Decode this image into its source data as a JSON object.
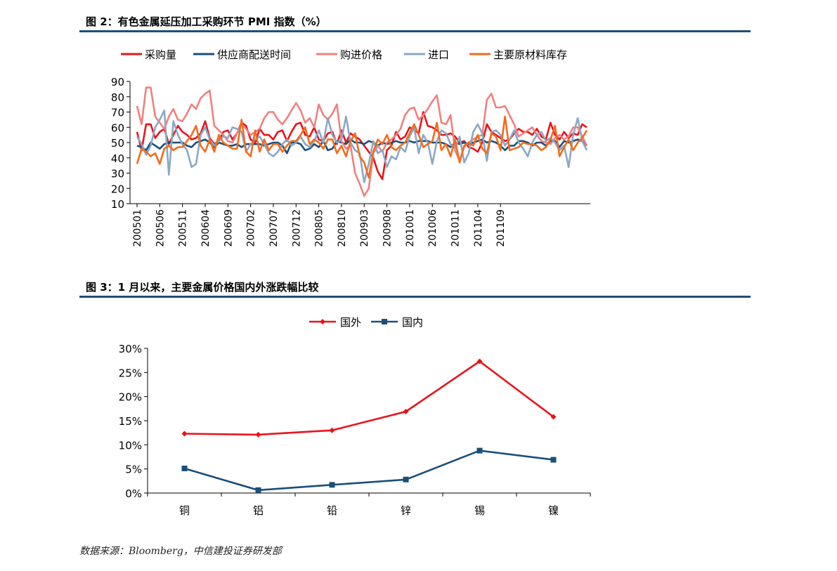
{
  "figure2": {
    "title": "图 2：有色金属延压加工采购环节 PMI 指数（%）"
  },
  "figure3": {
    "title": "图 3：1 月以来，主要金属价格国内外涨跌幅比较"
  },
  "source": "数据来源：Bloomberg，中信建投证券研发部",
  "chart_data": [
    {
      "type": "line",
      "title": "",
      "xlabel": "",
      "ylabel": "",
      "ylim": [
        10,
        90
      ],
      "yticks": [
        10,
        20,
        30,
        40,
        50,
        60,
        70,
        80,
        90
      ],
      "xtick_labels": [
        "200501",
        "200506",
        "200511",
        "200604",
        "200609",
        "200702",
        "200707",
        "200712",
        "200805",
        "200810",
        "200903",
        "200908",
        "201001",
        "201006",
        "201011",
        "201104",
        "201109"
      ],
      "grid": false,
      "legend_position": "top",
      "series": [
        {
          "name": "采购量",
          "color": "#e8141b",
          "values": [
            57,
            45,
            62,
            62,
            53,
            57,
            59,
            49,
            55,
            61,
            57,
            55,
            52,
            53,
            56,
            64,
            53,
            49,
            51,
            57,
            58,
            52,
            56,
            63,
            61,
            52,
            50,
            59,
            55,
            55,
            52,
            57,
            58,
            51,
            57,
            62,
            63,
            55,
            54,
            60,
            52,
            51,
            56,
            57,
            49,
            58,
            50,
            56,
            54,
            52,
            48,
            44,
            40,
            31,
            26,
            45,
            48,
            57,
            52,
            54,
            60,
            58,
            56,
            70,
            61,
            60,
            58,
            55,
            55,
            56,
            54,
            50,
            51,
            47,
            46,
            44,
            50,
            62,
            57,
            55,
            53,
            51,
            52,
            56,
            59,
            57,
            57,
            55,
            59,
            54,
            52,
            63,
            55,
            52,
            57,
            53,
            56,
            55,
            62,
            60
          ]
        },
        {
          "name": "供应商配送时间",
          "color": "#1a4f7a",
          "values": [
            48,
            47,
            45,
            50,
            48,
            46,
            49,
            50,
            50,
            50,
            50,
            48,
            47,
            50,
            51,
            52,
            50,
            47,
            50,
            49,
            48,
            48,
            49,
            47,
            49,
            49,
            49,
            49,
            48,
            49,
            50,
            50,
            48,
            43,
            50,
            50,
            49,
            45,
            46,
            49,
            47,
            51,
            45,
            46,
            51,
            50,
            49,
            52,
            50,
            50,
            49,
            51,
            50,
            48,
            50,
            49,
            50,
            51,
            50,
            50,
            51,
            50,
            51,
            51,
            51,
            50,
            50,
            50,
            49,
            47,
            50,
            49,
            50,
            49,
            50,
            51,
            52,
            50,
            51,
            50,
            48,
            45,
            48,
            48,
            51,
            51,
            50,
            48,
            50,
            50,
            48,
            51,
            51,
            47,
            51,
            50,
            51,
            52,
            51,
            48
          ]
        },
        {
          "name": "购进价格",
          "color": "#f08080",
          "values": [
            74,
            62,
            86,
            86,
            67,
            63,
            59,
            67,
            72,
            65,
            64,
            69,
            75,
            72,
            79,
            82,
            84,
            61,
            58,
            55,
            51,
            50,
            56,
            62,
            59,
            55,
            57,
            59,
            66,
            70,
            70,
            65,
            62,
            66,
            71,
            76,
            71,
            63,
            66,
            60,
            75,
            68,
            65,
            69,
            75,
            51,
            46,
            48,
            30,
            23,
            15,
            20,
            43,
            48,
            44,
            50,
            52,
            55,
            59,
            68,
            72,
            73,
            65,
            68,
            72,
            77,
            81,
            63,
            62,
            68,
            45,
            38,
            47,
            50,
            52,
            54,
            55,
            78,
            82,
            73,
            73,
            74,
            68,
            62,
            54,
            56,
            58,
            60,
            55,
            51,
            50,
            49,
            53,
            55,
            52,
            54,
            60,
            60,
            54,
            48
          ]
        },
        {
          "name": "进口",
          "color": "#8ba8c4",
          "values": [
            54,
            49,
            42,
            48,
            60,
            65,
            71,
            29,
            64,
            55,
            49,
            45,
            34,
            36,
            55,
            60,
            52,
            48,
            51,
            54,
            53,
            60,
            59,
            57,
            44,
            49,
            52,
            54,
            49,
            43,
            41,
            44,
            49,
            52,
            48,
            50,
            54,
            49,
            47,
            51,
            58,
            50,
            66,
            55,
            50,
            52,
            67,
            50,
            45,
            43,
            24,
            36,
            51,
            43,
            45,
            34,
            41,
            39,
            47,
            44,
            54,
            60,
            43,
            55,
            50,
            36,
            51,
            58,
            56,
            49,
            46,
            54,
            37,
            43,
            57,
            62,
            56,
            38,
            57,
            58,
            55,
            48,
            52,
            58,
            50,
            46,
            41,
            50,
            55,
            57,
            51,
            53,
            50,
            45,
            48,
            34,
            55,
            66,
            51,
            45
          ]
        },
        {
          "name": "主要原材料库存",
          "color": "#f26b1d",
          "values": [
            36,
            46,
            44,
            41,
            43,
            36,
            46,
            48,
            45,
            47,
            47,
            51,
            55,
            61,
            48,
            44,
            52,
            44,
            55,
            50,
            48,
            46,
            46,
            65,
            44,
            41,
            58,
            44,
            52,
            45,
            49,
            49,
            44,
            48,
            51,
            51,
            55,
            60,
            49,
            52,
            50,
            46,
            52,
            52,
            43,
            48,
            41,
            51,
            56,
            41,
            37,
            27,
            44,
            52,
            49,
            55,
            47,
            45,
            48,
            50,
            56,
            62,
            55,
            47,
            49,
            51,
            63,
            45,
            49,
            41,
            52,
            37,
            48,
            50,
            48,
            55,
            46,
            43,
            56,
            54,
            45,
            67,
            45,
            46,
            47,
            50,
            49,
            49,
            48,
            45,
            47,
            52,
            61,
            41,
            47,
            52,
            45,
            50,
            53,
            58
          ]
        }
      ]
    },
    {
      "type": "line",
      "title": "",
      "xlabel": "",
      "ylabel": "",
      "ylim": [
        0,
        30
      ],
      "yticks": [
        0,
        5,
        10,
        15,
        20,
        25,
        30
      ],
      "ytick_format": "percent",
      "grid": false,
      "legend_position": "top",
      "categories": [
        "铜",
        "铝",
        "铅",
        "锌",
        "锡",
        "镍"
      ],
      "series": [
        {
          "name": "国外",
          "color": "#e8141b",
          "marker": "diamond",
          "values": [
            12.3,
            12.1,
            13.0,
            16.9,
            27.3,
            15.8
          ]
        },
        {
          "name": "国内",
          "color": "#1a4f7a",
          "marker": "square",
          "values": [
            5.1,
            0.6,
            1.7,
            2.8,
            8.8,
            6.9
          ]
        }
      ]
    }
  ]
}
